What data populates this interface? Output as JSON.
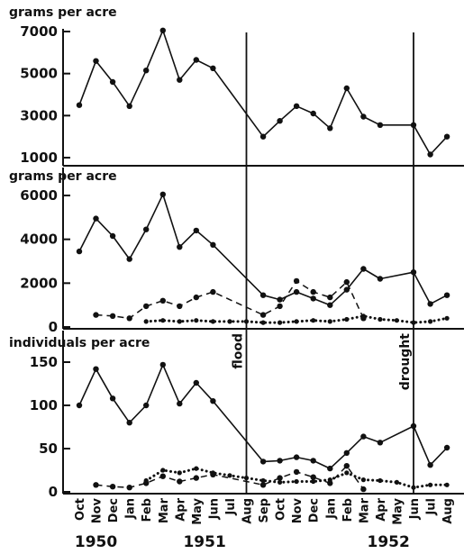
{
  "chart_data": {
    "type": "line",
    "months": [
      "Oct",
      "Nov",
      "Dec",
      "Jan",
      "Feb",
      "Mar",
      "Apr",
      "May",
      "Jun",
      "Jul",
      "Aug",
      "Sep",
      "Oct",
      "Nov",
      "Dec",
      "Jan",
      "Feb",
      "Mar",
      "Apr",
      "May",
      "Jun",
      "Jul",
      "Aug"
    ],
    "years": [
      {
        "label": "1950",
        "at_index": 1
      },
      {
        "label": "1951",
        "at_index": 7.5
      },
      {
        "label": "1952",
        "at_index": 18.5
      }
    ],
    "annotations": [
      {
        "text": "flood",
        "at_index": 10,
        "panel": 3
      },
      {
        "text": "drought",
        "at_index": 20,
        "panel": 3
      }
    ],
    "vlines_at_index": [
      10,
      20
    ],
    "panels": [
      {
        "ylabel": "grams per acre",
        "yticks": [
          1000,
          3000,
          5000,
          7000
        ],
        "ylim": [
          800,
          7400
        ],
        "series": [
          {
            "style": "solid",
            "marker": true,
            "points": [
              [
                0,
                3500
              ],
              [
                1,
                5600
              ],
              [
                2,
                4600
              ],
              [
                3,
                3450
              ],
              [
                4,
                5150
              ],
              [
                5,
                7050
              ],
              [
                6,
                4700
              ],
              [
                7,
                5650
              ],
              [
                8,
                5250
              ],
              [
                11,
                2000
              ],
              [
                12,
                2750
              ],
              [
                13,
                3450
              ],
              [
                14,
                3100
              ],
              [
                15,
                2400
              ],
              [
                16,
                4300
              ],
              [
                17,
                2950
              ],
              [
                18,
                2550
              ],
              [
                20,
                2550
              ],
              [
                21,
                1150
              ],
              [
                22,
                2000
              ]
            ]
          }
        ]
      },
      {
        "ylabel": "grams per acre",
        "yticks": [
          0,
          2000,
          4000,
          6000
        ],
        "ylim": [
          0,
          6600
        ],
        "series": [
          {
            "style": "solid",
            "marker": true,
            "points": [
              [
                0,
                3450
              ],
              [
                1,
                4950
              ],
              [
                2,
                4150
              ],
              [
                3,
                3100
              ],
              [
                4,
                4450
              ],
              [
                5,
                6050
              ],
              [
                6,
                3650
              ],
              [
                7,
                4400
              ],
              [
                8,
                3750
              ],
              [
                11,
                1450
              ],
              [
                12,
                1250
              ],
              [
                13,
                1600
              ],
              [
                14,
                1300
              ],
              [
                15,
                1000
              ],
              [
                16,
                1700
              ],
              [
                17,
                2650
              ],
              [
                18,
                2200
              ],
              [
                20,
                2500
              ],
              [
                21,
                1050
              ],
              [
                22,
                1450
              ]
            ]
          },
          {
            "style": "dashed",
            "marker": true,
            "points": [
              [
                1,
                550
              ],
              [
                2,
                500
              ],
              [
                3,
                400
              ],
              [
                4,
                950
              ],
              [
                5,
                1200
              ],
              [
                6,
                950
              ],
              [
                7,
                1350
              ],
              [
                8,
                1600
              ],
              [
                11,
                550
              ],
              [
                12,
                950
              ],
              [
                13,
                2100
              ],
              [
                14,
                1600
              ],
              [
                15,
                1350
              ],
              [
                16,
                2050
              ],
              [
                17,
                400
              ]
            ]
          },
          {
            "style": "dotted",
            "marker": true,
            "points": [
              [
                4,
                250
              ],
              [
                5,
                300
              ],
              [
                6,
                250
              ],
              [
                7,
                300
              ],
              [
                8,
                250
              ],
              [
                9,
                250
              ],
              [
                10,
                250
              ],
              [
                11,
                200
              ],
              [
                12,
                200
              ],
              [
                13,
                250
              ],
              [
                14,
                300
              ],
              [
                15,
                250
              ],
              [
                16,
                350
              ],
              [
                17,
                500
              ],
              [
                18,
                350
              ],
              [
                19,
                300
              ],
              [
                20,
                200
              ],
              [
                21,
                250
              ],
              [
                22,
                400
              ]
            ]
          }
        ]
      },
      {
        "ylabel": "individuals per acre",
        "yticks": [
          0,
          50,
          100,
          150
        ],
        "ylim": [
          0,
          165
        ],
        "series": [
          {
            "style": "solid",
            "marker": true,
            "points": [
              [
                0,
                100
              ],
              [
                1,
                142
              ],
              [
                2,
                108
              ],
              [
                3,
                80
              ],
              [
                4,
                100
              ],
              [
                5,
                147
              ],
              [
                6,
                102
              ],
              [
                7,
                126
              ],
              [
                8,
                105
              ],
              [
                11,
                35
              ],
              [
                12,
                36
              ],
              [
                13,
                40
              ],
              [
                14,
                36
              ],
              [
                15,
                27
              ],
              [
                16,
                45
              ],
              [
                17,
                64
              ],
              [
                18,
                57
              ],
              [
                20,
                76
              ],
              [
                21,
                31
              ],
              [
                22,
                51
              ]
            ]
          },
          {
            "style": "dashed",
            "marker": true,
            "points": [
              [
                1,
                8
              ],
              [
                2,
                6
              ],
              [
                3,
                5
              ],
              [
                4,
                10
              ],
              [
                5,
                18
              ],
              [
                6,
                12
              ],
              [
                7,
                16
              ],
              [
                8,
                20
              ],
              [
                11,
                8
              ],
              [
                12,
                16
              ],
              [
                13,
                23
              ],
              [
                14,
                17
              ],
              [
                15,
                10
              ],
              [
                16,
                30
              ],
              [
                17,
                3
              ]
            ]
          },
          {
            "style": "dotted",
            "marker": true,
            "points": [
              [
                4,
                13
              ],
              [
                5,
                25
              ],
              [
                6,
                22
              ],
              [
                7,
                27
              ],
              [
                8,
                22
              ],
              [
                9,
                19
              ],
              [
                10,
                16
              ],
              [
                11,
                13
              ],
              [
                12,
                11
              ],
              [
                13,
                12
              ],
              [
                14,
                12
              ],
              [
                15,
                14
              ],
              [
                16,
                22
              ],
              [
                17,
                14
              ],
              [
                18,
                13
              ],
              [
                19,
                11
              ],
              [
                20,
                5
              ],
              [
                21,
                8
              ],
              [
                22,
                8
              ]
            ]
          }
        ]
      }
    ]
  }
}
